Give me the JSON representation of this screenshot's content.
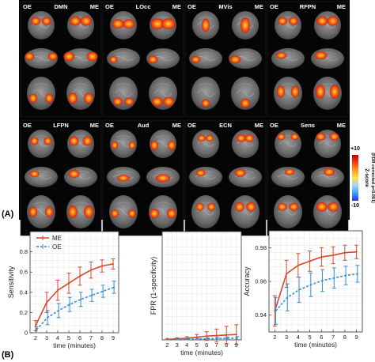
{
  "panel_a": {
    "label": "(A)",
    "left_tag": "OE",
    "right_tag": "ME",
    "panels": [
      {
        "name": "DMN"
      },
      {
        "name": "LOcc"
      },
      {
        "name": "MVis"
      },
      {
        "name": "RFPN"
      },
      {
        "name": "LFPN"
      },
      {
        "name": "Aud"
      },
      {
        "name": "ECN"
      },
      {
        "name": "Sens"
      }
    ],
    "colorbar": {
      "max_label": "+10",
      "min_label": "-10",
      "title": "Z-score",
      "subtitle": "(FDR corrected p<0.001)",
      "colors": [
        "#2030ff",
        "#3fa0ff",
        "#9fd6ff",
        "#ffe14a",
        "#ff9c1a",
        "#ff3a10",
        "#c00000"
      ]
    }
  },
  "panel_b": {
    "label": "(B)",
    "colors": {
      "ME": "#d9472b",
      "OE": "#3a8fd0"
    }
  },
  "chart_data": [
    {
      "type": "line",
      "xlabel": "time (minutes)",
      "ylabel": "Sensitivity",
      "x": [
        2,
        3,
        4,
        5,
        6,
        7,
        8,
        9
      ],
      "xlim": [
        1.5,
        9.5
      ],
      "ylim": [
        0,
        1
      ],
      "xticks": [
        "2",
        "3",
        "4",
        "5",
        "6",
        "7",
        "8",
        "9"
      ],
      "yticks": [
        "0",
        "0.2",
        "0.4",
        "0.6",
        "0.8",
        "1"
      ],
      "grid": true,
      "legend": {
        "position": "top-left",
        "entries": [
          "ME",
          "OE"
        ]
      },
      "series": [
        {
          "name": "ME",
          "values": [
            0.07,
            0.3,
            0.42,
            0.49,
            0.56,
            0.62,
            0.66,
            0.68
          ],
          "err": [
            0.05,
            0.1,
            0.1,
            0.1,
            0.09,
            0.08,
            0.06,
            0.05
          ]
        },
        {
          "name": "OE",
          "values": [
            0.03,
            0.15,
            0.22,
            0.28,
            0.33,
            0.37,
            0.41,
            0.45
          ],
          "err": [
            0.03,
            0.07,
            0.07,
            0.07,
            0.07,
            0.06,
            0.06,
            0.06
          ]
        }
      ]
    },
    {
      "type": "line",
      "xlabel": "time (minutes)",
      "ylabel": "FPR (1-specificity)",
      "x": [
        2,
        3,
        4,
        5,
        6,
        7,
        8,
        9
      ],
      "xlim": [
        1.5,
        9.5
      ],
      "ylim": [
        0,
        0.1
      ],
      "xticks": [
        "2",
        "3",
        "4",
        "5",
        "6",
        "7",
        "8",
        "9"
      ],
      "yticks": [],
      "grid": true,
      "series": [
        {
          "name": "ME",
          "values": [
            0.0005,
            0.001,
            0.0015,
            0.0025,
            0.0035,
            0.004,
            0.0045,
            0.005
          ],
          "err": [
            0.0005,
            0.001,
            0.0015,
            0.0025,
            0.004,
            0.006,
            0.008,
            0.009
          ]
        },
        {
          "name": "OE",
          "values": [
            0.0002,
            0.0004,
            0.0006,
            0.0008,
            0.001,
            0.0012,
            0.0014,
            0.0016
          ],
          "err": [
            0.0002,
            0.0003,
            0.0004,
            0.0006,
            0.0008,
            0.001,
            0.0012,
            0.0014
          ]
        }
      ]
    },
    {
      "type": "line",
      "xlabel": "time (minutes)",
      "ylabel": "Accuracy",
      "x": [
        2,
        3,
        4,
        5,
        6,
        7,
        8,
        9
      ],
      "xlim": [
        1.5,
        9.5
      ],
      "ylim": [
        0.93,
        0.99
      ],
      "xticks": [
        "2",
        "3",
        "4",
        "5",
        "6",
        "7",
        "8",
        "9"
      ],
      "yticks": [
        "0.94",
        "0.96",
        "0.98"
      ],
      "grid": true,
      "series": [
        {
          "name": "ME",
          "values": [
            0.9425,
            0.9645,
            0.9695,
            0.972,
            0.9745,
            0.9755,
            0.977,
            0.9775
          ],
          "err": [
            0.009,
            0.008,
            0.007,
            0.006,
            0.0055,
            0.005,
            0.0045,
            0.004
          ]
        },
        {
          "name": "OE",
          "values": [
            0.9425,
            0.9505,
            0.955,
            0.958,
            0.9605,
            0.962,
            0.9635,
            0.9645
          ],
          "err": [
            0.008,
            0.008,
            0.0075,
            0.007,
            0.0065,
            0.006,
            0.0055,
            0.005
          ]
        }
      ]
    }
  ]
}
